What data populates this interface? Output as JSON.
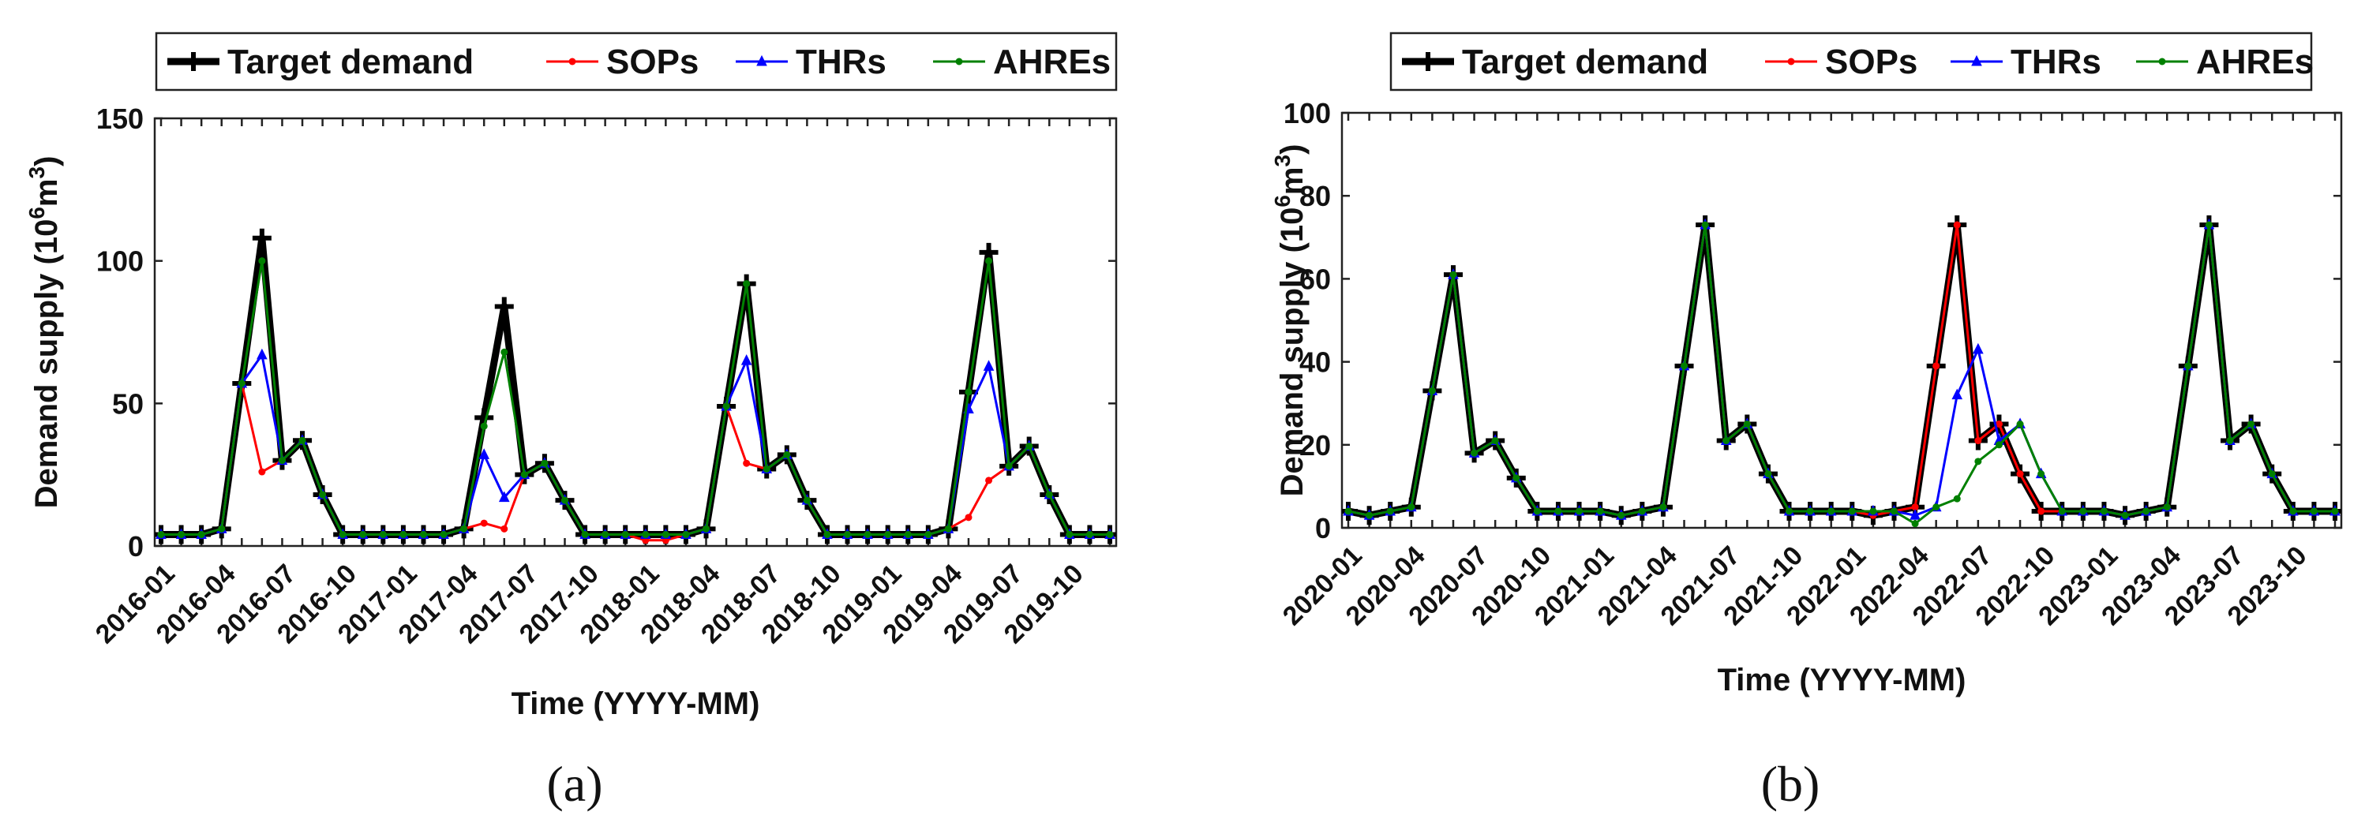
{
  "captions": [
    "(a)",
    "(b)"
  ],
  "chart_data": [
    {
      "type": "line",
      "panel": "(a)",
      "xlabel": "Time (YYYY-MM)",
      "ylabel": "Demand supply (10^6m^3)",
      "ylabel_parts": {
        "main": "Demand supply (10",
        "sup1": "6",
        "mid": "m",
        "sup2": "3",
        "end": ")"
      },
      "ylim": [
        0,
        150
      ],
      "yticks": [
        "0",
        "50",
        "100",
        "150"
      ],
      "x": [
        "2016-01",
        "2016-02",
        "2016-03",
        "2016-04",
        "2016-05",
        "2016-06",
        "2016-07",
        "2016-08",
        "2016-09",
        "2016-10",
        "2016-11",
        "2016-12",
        "2017-01",
        "2017-02",
        "2017-03",
        "2017-04",
        "2017-05",
        "2017-06",
        "2017-07",
        "2017-08",
        "2017-09",
        "2017-10",
        "2017-11",
        "2017-12",
        "2018-01",
        "2018-02",
        "2018-03",
        "2018-04",
        "2018-05",
        "2018-06",
        "2018-07",
        "2018-08",
        "2018-09",
        "2018-10",
        "2018-11",
        "2018-12",
        "2019-01",
        "2019-02",
        "2019-03",
        "2019-04",
        "2019-05",
        "2019-06",
        "2019-07",
        "2019-08",
        "2019-09",
        "2019-10",
        "2019-11",
        "2019-12"
      ],
      "xticklabels": [
        "2016-01",
        "2016-04",
        "2016-07",
        "2016-10",
        "2017-01",
        "2017-04",
        "2017-07",
        "2017-10",
        "2018-01",
        "2018-04",
        "2018-07",
        "2018-10",
        "2019-01",
        "2019-04",
        "2019-07",
        "2019-10"
      ],
      "legend": {
        "placement": "top",
        "entries": [
          "Target demand",
          "SOPs",
          "THRs",
          "AHREs"
        ]
      },
      "series": [
        {
          "name": "Target demand",
          "color": "#000000",
          "marker": "plus",
          "values": [
            4,
            4,
            4,
            6,
            57,
            108,
            30,
            37,
            18,
            4,
            4,
            4,
            4,
            4,
            4,
            6,
            45,
            84,
            25,
            29,
            16,
            4,
            4,
            4,
            4,
            4,
            4,
            6,
            49,
            92,
            27,
            32,
            16,
            4,
            4,
            4,
            4,
            4,
            4,
            6,
            54,
            103,
            28,
            35,
            18,
            4,
            4,
            4
          ]
        },
        {
          "name": "SOPs",
          "color": "#ff0000",
          "marker": "dot",
          "values": [
            4,
            4,
            4,
            6,
            57,
            26,
            30,
            37,
            18,
            4,
            4,
            4,
            4,
            4,
            4,
            6,
            8,
            6,
            25,
            29,
            16,
            4,
            4,
            4,
            2,
            2,
            4,
            6,
            49,
            29,
            27,
            32,
            16,
            4,
            4,
            4,
            4,
            4,
            4,
            6,
            10,
            23,
            28,
            35,
            18,
            4,
            4,
            4
          ]
        },
        {
          "name": "THRs",
          "color": "#0000ff",
          "marker": "triangle",
          "values": [
            4,
            4,
            4,
            6,
            57,
            67,
            30,
            37,
            18,
            4,
            4,
            4,
            4,
            4,
            4,
            6,
            32,
            17,
            25,
            29,
            16,
            4,
            4,
            4,
            4,
            4,
            4,
            6,
            49,
            65,
            27,
            32,
            16,
            4,
            4,
            4,
            4,
            4,
            4,
            6,
            48,
            63,
            28,
            35,
            18,
            4,
            4,
            4
          ]
        },
        {
          "name": "AHREs",
          "color": "#008000",
          "marker": "dot",
          "values": [
            4,
            4,
            4,
            6,
            57,
            100,
            30,
            37,
            18,
            4,
            4,
            4,
            4,
            4,
            4,
            6,
            42,
            68,
            25,
            29,
            16,
            4,
            4,
            4,
            4,
            4,
            4,
            6,
            49,
            92,
            27,
            32,
            16,
            4,
            4,
            4,
            4,
            4,
            4,
            6,
            54,
            100,
            28,
            35,
            18,
            4,
            4,
            4
          ]
        }
      ]
    },
    {
      "type": "line",
      "panel": "(b)",
      "xlabel": "Time (YYYY-MM)",
      "ylabel": "Demand supply (10^6m^3)",
      "ylabel_parts": {
        "main": "Demand supply (10",
        "sup1": "6",
        "mid": "m",
        "sup2": "3",
        "end": ")"
      },
      "ylim": [
        0,
        100
      ],
      "yticks": [
        "0",
        "20",
        "40",
        "60",
        "80",
        "100"
      ],
      "x": [
        "2020-01",
        "2020-02",
        "2020-03",
        "2020-04",
        "2020-05",
        "2020-06",
        "2020-07",
        "2020-08",
        "2020-09",
        "2020-10",
        "2020-11",
        "2020-12",
        "2021-01",
        "2021-02",
        "2021-03",
        "2021-04",
        "2021-05",
        "2021-06",
        "2021-07",
        "2021-08",
        "2021-09",
        "2021-10",
        "2021-11",
        "2021-12",
        "2022-01",
        "2022-02",
        "2022-03",
        "2022-04",
        "2022-05",
        "2022-06",
        "2022-07",
        "2022-08",
        "2022-09",
        "2022-10",
        "2022-11",
        "2022-12",
        "2023-01",
        "2023-02",
        "2023-03",
        "2023-04",
        "2023-05",
        "2023-06",
        "2023-07",
        "2023-08",
        "2023-09",
        "2023-10",
        "2023-11",
        "2023-12"
      ],
      "xticklabels": [
        "2020-01",
        "2020-04",
        "2020-07",
        "2020-10",
        "2021-01",
        "2021-04",
        "2021-07",
        "2021-10",
        "2022-01",
        "2022-04",
        "2022-07",
        "2022-10",
        "2023-01",
        "2023-04",
        "2023-07",
        "2023-10"
      ],
      "legend": {
        "placement": "top",
        "entries": [
          "Target demand",
          "SOPs",
          "THRs",
          "AHREs"
        ]
      },
      "series": [
        {
          "name": "Target demand",
          "color": "#000000",
          "marker": "plus",
          "values": [
            4,
            3,
            4,
            5,
            33,
            61,
            18,
            21,
            12,
            4,
            4,
            4,
            4,
            3,
            4,
            5,
            39,
            73,
            21,
            25,
            13,
            4,
            4,
            4,
            4,
            3,
            4,
            5,
            39,
            73,
            21,
            25,
            13,
            4,
            4,
            4,
            4,
            3,
            4,
            5,
            39,
            73,
            21,
            25,
            13,
            4,
            4,
            4
          ]
        },
        {
          "name": "SOPs",
          "color": "#ff0000",
          "marker": "dot",
          "values": [
            4,
            3,
            4,
            5,
            33,
            61,
            18,
            21,
            12,
            4,
            4,
            4,
            4,
            3,
            4,
            5,
            39,
            73,
            21,
            25,
            13,
            4,
            4,
            4,
            4,
            3,
            4,
            5,
            39,
            73,
            21,
            25,
            13,
            4,
            4,
            4,
            4,
            3,
            4,
            5,
            39,
            73,
            21,
            25,
            13,
            4,
            4,
            4
          ]
        },
        {
          "name": "THRs",
          "color": "#0000ff",
          "marker": "triangle",
          "values": [
            4,
            3,
            4,
            5,
            33,
            61,
            18,
            21,
            12,
            4,
            4,
            4,
            4,
            3,
            4,
            5,
            39,
            73,
            21,
            25,
            13,
            4,
            4,
            4,
            4,
            4,
            4,
            3,
            5,
            32,
            43,
            21,
            25,
            13,
            4,
            4,
            4,
            3,
            4,
            5,
            39,
            73,
            21,
            25,
            13,
            4,
            4,
            4
          ]
        },
        {
          "name": "AHREs",
          "color": "#008000",
          "marker": "dot",
          "values": [
            4,
            3,
            4,
            5,
            33,
            61,
            18,
            21,
            12,
            4,
            4,
            4,
            4,
            3,
            4,
            5,
            39,
            73,
            21,
            25,
            13,
            4,
            4,
            4,
            4,
            4,
            4,
            1,
            5,
            7,
            16,
            20,
            25,
            13,
            4,
            4,
            4,
            3,
            4,
            5,
            39,
            73,
            21,
            25,
            13,
            4,
            4,
            4
          ]
        }
      ]
    }
  ]
}
